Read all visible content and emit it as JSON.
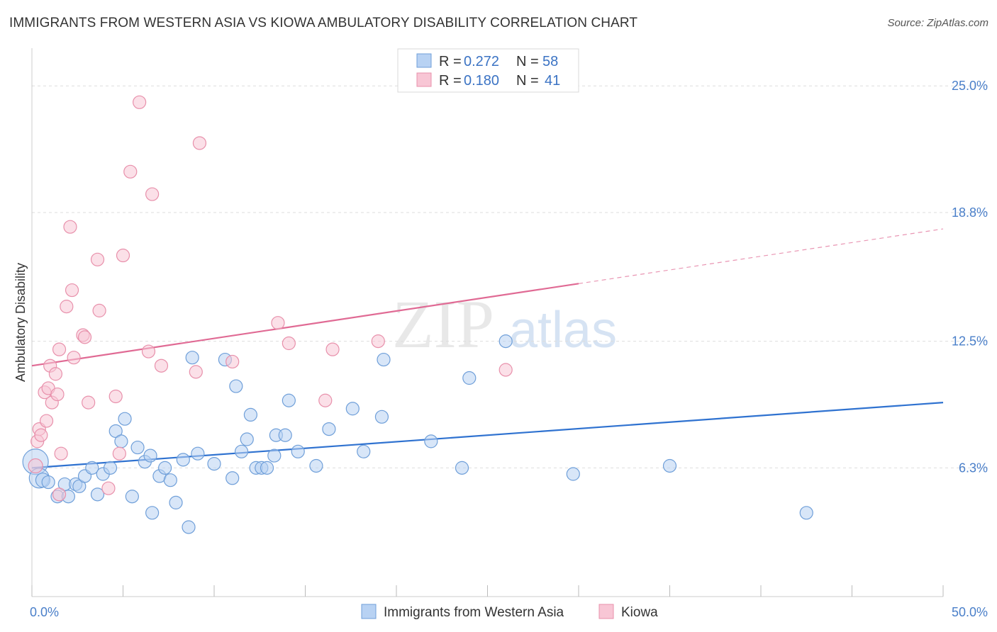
{
  "title": "IMMIGRANTS FROM WESTERN ASIA VS KIOWA AMBULATORY DISABILITY CORRELATION CHART",
  "source": "Source: ZipAtlas.com",
  "watermark": {
    "zip": "ZIP",
    "atlas": "atlas"
  },
  "colors": {
    "blue_fill": "#b8d2f3",
    "blue_stroke": "#6f9fd9",
    "blue_line": "#2f72d0",
    "pink_fill": "#f8c6d5",
    "pink_stroke": "#e890ab",
    "pink_line": "#e06a94",
    "grid": "#dddddd",
    "tick_label": "#4a7fc9"
  },
  "legend": {
    "rows": [
      {
        "r_label": "R = ",
        "r_value": "0.272",
        "n_label": "N = ",
        "n_value": "58"
      },
      {
        "r_label": "R = ",
        "r_value": "0.180",
        "n_label": "N = ",
        "n_value": "41"
      }
    ]
  },
  "chart_data": {
    "type": "scatter",
    "title": "IMMIGRANTS FROM WESTERN ASIA VS KIOWA AMBULATORY DISABILITY CORRELATION CHART",
    "xlabel": "",
    "ylabel": "Ambulatory Disability",
    "xlim": [
      0,
      50
    ],
    "ylim": [
      0,
      26.5
    ],
    "x_tick_labels": [
      "0.0%",
      "50.0%"
    ],
    "y_ticks": [
      {
        "value": 6.3,
        "label": "6.3%"
      },
      {
        "value": 12.5,
        "label": "12.5%"
      },
      {
        "value": 18.8,
        "label": "18.8%"
      },
      {
        "value": 25.0,
        "label": "25.0%"
      }
    ],
    "series": [
      {
        "name": "Immigrants from Western Asia",
        "color": "blue",
        "r": "0.272",
        "n": "58",
        "trend": {
          "x0": 0,
          "y0": 6.3,
          "x1": 50,
          "y1": 9.5,
          "solid_until": 50
        },
        "points": [
          [
            0.2,
            6.6,
            18
          ],
          [
            0.4,
            5.8,
            14
          ],
          [
            0.6,
            5.7,
            10
          ],
          [
            0.9,
            5.6,
            9
          ],
          [
            1.4,
            4.9,
            9
          ],
          [
            1.8,
            5.5,
            9
          ],
          [
            2.0,
            4.9,
            9
          ],
          [
            2.4,
            5.5,
            9
          ],
          [
            2.6,
            5.4,
            9
          ],
          [
            2.9,
            5.9,
            9
          ],
          [
            3.3,
            6.3,
            9
          ],
          [
            3.6,
            5.0,
            9
          ],
          [
            3.9,
            6.0,
            9
          ],
          [
            4.3,
            6.3,
            9
          ],
          [
            4.6,
            8.1,
            9
          ],
          [
            4.9,
            7.6,
            9
          ],
          [
            5.1,
            8.7,
            9
          ],
          [
            5.5,
            4.9,
            9
          ],
          [
            5.8,
            7.3,
            9
          ],
          [
            6.2,
            6.6,
            9
          ],
          [
            6.5,
            6.9,
            9
          ],
          [
            6.6,
            4.1,
            9
          ],
          [
            7.0,
            5.9,
            9
          ],
          [
            7.3,
            6.3,
            9
          ],
          [
            7.6,
            5.7,
            9
          ],
          [
            7.9,
            4.6,
            9
          ],
          [
            8.3,
            6.7,
            9
          ],
          [
            8.6,
            3.4,
            9
          ],
          [
            8.8,
            11.7,
            9
          ],
          [
            9.1,
            7.0,
            9
          ],
          [
            10.0,
            6.5,
            9
          ],
          [
            10.6,
            11.6,
            9
          ],
          [
            11.0,
            5.8,
            9
          ],
          [
            11.2,
            10.3,
            9
          ],
          [
            11.5,
            7.1,
            9
          ],
          [
            11.8,
            7.7,
            9
          ],
          [
            12.0,
            8.9,
            9
          ],
          [
            12.3,
            6.3,
            9
          ],
          [
            12.6,
            6.3,
            9
          ],
          [
            12.9,
            6.3,
            9
          ],
          [
            13.3,
            6.9,
            9
          ],
          [
            13.4,
            7.9,
            9
          ],
          [
            13.9,
            7.9,
            9
          ],
          [
            14.1,
            9.6,
            9
          ],
          [
            14.6,
            7.1,
            9
          ],
          [
            15.6,
            6.4,
            9
          ],
          [
            16.3,
            8.2,
            9
          ],
          [
            17.6,
            9.2,
            9
          ],
          [
            18.2,
            7.1,
            9
          ],
          [
            19.2,
            8.8,
            9
          ],
          [
            19.3,
            11.6,
            9
          ],
          [
            21.9,
            7.6,
            9
          ],
          [
            23.6,
            6.3,
            9
          ],
          [
            24.0,
            10.7,
            9
          ],
          [
            26.0,
            12.5,
            9
          ],
          [
            29.7,
            6.0,
            9
          ],
          [
            35.0,
            6.4,
            9
          ],
          [
            42.5,
            4.1,
            9
          ]
        ]
      },
      {
        "name": "Kiowa",
        "color": "pink",
        "r": "0.180",
        "n": "41",
        "trend": {
          "x0": 0,
          "y0": 11.3,
          "x1": 50,
          "y1": 18.0,
          "solid_until": 30
        },
        "points": [
          [
            0.2,
            6.4,
            10
          ],
          [
            0.3,
            7.6,
            9
          ],
          [
            0.4,
            8.2,
            9
          ],
          [
            0.5,
            7.9,
            9
          ],
          [
            0.7,
            10.0,
            9
          ],
          [
            0.8,
            8.6,
            9
          ],
          [
            0.9,
            10.2,
            9
          ],
          [
            1.0,
            11.3,
            9
          ],
          [
            1.1,
            9.5,
            9
          ],
          [
            1.3,
            10.9,
            9
          ],
          [
            1.4,
            9.9,
            9
          ],
          [
            1.5,
            12.1,
            9
          ],
          [
            1.6,
            7.0,
            9
          ],
          [
            1.5,
            5.0,
            9
          ],
          [
            1.9,
            14.2,
            9
          ],
          [
            2.1,
            18.1,
            9
          ],
          [
            2.2,
            15.0,
            9
          ],
          [
            2.3,
            11.7,
            9
          ],
          [
            2.8,
            12.8,
            9
          ],
          [
            2.9,
            12.7,
            9
          ],
          [
            3.1,
            9.5,
            9
          ],
          [
            3.6,
            16.5,
            9
          ],
          [
            3.7,
            14.0,
            9
          ],
          [
            4.2,
            5.3,
            9
          ],
          [
            4.6,
            9.8,
            9
          ],
          [
            4.8,
            7.0,
            9
          ],
          [
            5.0,
            16.7,
            9
          ],
          [
            5.4,
            20.8,
            9
          ],
          [
            5.9,
            24.2,
            9
          ],
          [
            6.4,
            12.0,
            9
          ],
          [
            6.6,
            19.7,
            9
          ],
          [
            7.1,
            11.3,
            9
          ],
          [
            9.0,
            11.0,
            9
          ],
          [
            9.2,
            22.2,
            9
          ],
          [
            11.0,
            11.5,
            9
          ],
          [
            13.5,
            13.4,
            9
          ],
          [
            14.1,
            12.4,
            9
          ],
          [
            16.1,
            9.6,
            9
          ],
          [
            16.5,
            12.1,
            9
          ],
          [
            19.0,
            12.5,
            9
          ],
          [
            26.0,
            11.1,
            9
          ]
        ]
      }
    ]
  },
  "bottom_legend": {
    "items": [
      {
        "label": "Immigrants from Western Asia",
        "color": "blue"
      },
      {
        "label": "Kiowa",
        "color": "pink"
      }
    ]
  }
}
